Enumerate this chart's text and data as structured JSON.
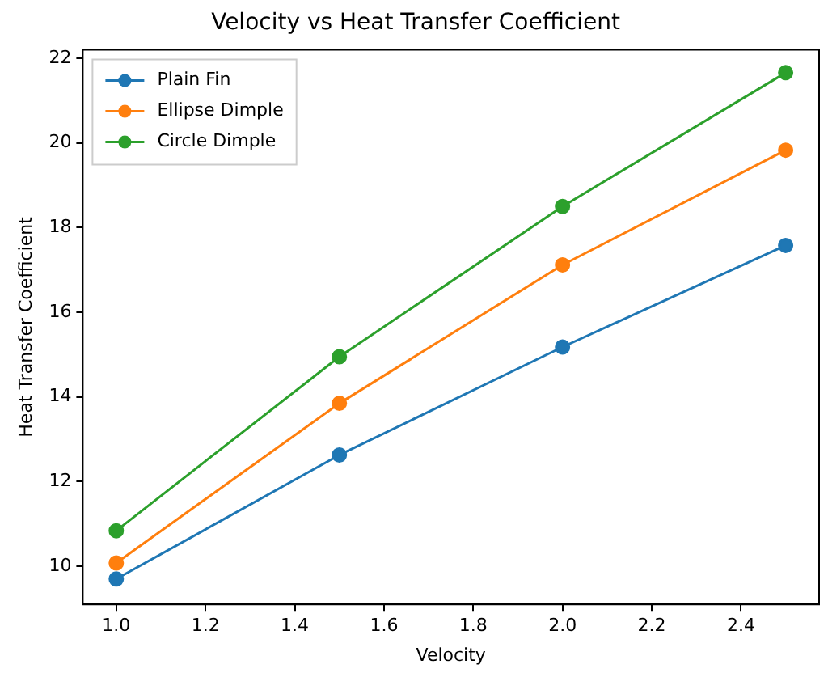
{
  "chart_data": {
    "type": "line",
    "title": "Velocity vs Heat Transfer Coefficient",
    "xlabel": "Velocity",
    "ylabel": "Heat Transfer Coefficient",
    "x": [
      1.0,
      1.5,
      2.0,
      2.5
    ],
    "series": [
      {
        "name": "Plain Fin",
        "color": "#1f77b4",
        "values": [
          9.7,
          12.63,
          15.18,
          17.58
        ]
      },
      {
        "name": "Ellipse Dimple",
        "color": "#ff7f0e",
        "values": [
          10.08,
          13.85,
          17.12,
          19.83
        ]
      },
      {
        "name": "Circle Dimple",
        "color": "#2ca02c",
        "values": [
          10.84,
          14.95,
          18.5,
          21.66
        ]
      }
    ],
    "xlim": [
      0.925,
      2.575
    ],
    "xticks": [
      {
        "value": 1,
        "label": "1.0"
      },
      1.2,
      1.4,
      1.6,
      1.8,
      {
        "value": 2,
        "label": "2.0"
      },
      2.2,
      2.4
    ],
    "ylim": [
      9.1,
      22.2
    ],
    "yticks": [
      10,
      12,
      14,
      16,
      18,
      20,
      22
    ],
    "legend": "top left",
    "grid": false,
    "marker": "circle",
    "line_style": "solid"
  }
}
